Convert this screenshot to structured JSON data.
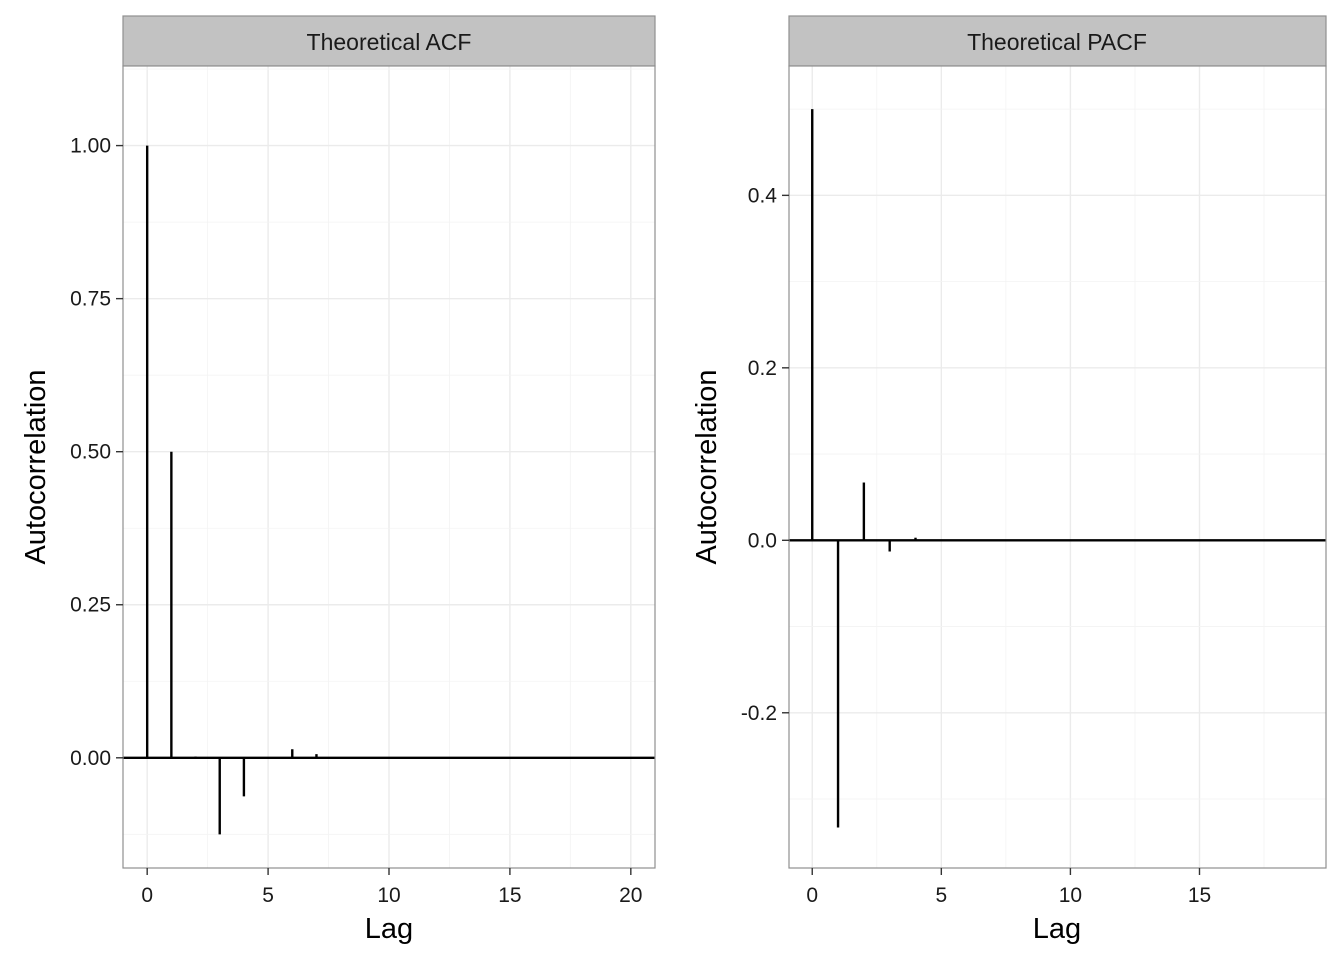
{
  "chart_data": [
    {
      "type": "bar",
      "title": "Theoretical ACF",
      "xlabel": "Lag",
      "ylabel": "Autocorrelation",
      "xlim": [
        -1,
        21
      ],
      "ylim": [
        -0.18,
        1.13
      ],
      "xticks": [
        0,
        5,
        10,
        15,
        20
      ],
      "xtick_labels": [
        "0",
        "5",
        "10",
        "15",
        "20"
      ],
      "yticks": [
        0,
        0.25,
        0.5,
        0.75,
        1.0
      ],
      "ytick_labels": [
        "0.00",
        "0.25",
        "0.50",
        "0.75",
        "1.00"
      ],
      "grid": true,
      "x": [
        0,
        1,
        2,
        3,
        4,
        5,
        6,
        7,
        8,
        9,
        10,
        11,
        12,
        13,
        14,
        15,
        16,
        17,
        18,
        19,
        20
      ],
      "values": [
        1.0,
        0.5,
        0.002,
        -0.125,
        -0.063,
        0.0,
        0.014,
        0.006,
        0.0,
        0.0,
        0.0,
        0.0,
        0.0,
        0.0,
        0.0,
        0.0,
        0.0,
        0.0,
        0.0,
        0.0,
        0.0
      ]
    },
    {
      "type": "bar",
      "title": "Theoretical PACF",
      "xlabel": "Lag",
      "ylabel": "Autocorrelation",
      "xlim": [
        -0.9,
        19.9
      ],
      "ylim": [
        -0.38,
        0.55
      ],
      "xticks": [
        0,
        5,
        10,
        15
      ],
      "xtick_labels": [
        "0",
        "5",
        "10",
        "15"
      ],
      "yticks": [
        -0.2,
        0.0,
        0.2,
        0.4
      ],
      "ytick_labels": [
        "-0.2",
        "0.0",
        "0.2",
        "0.4"
      ],
      "grid": true,
      "x": [
        0,
        1,
        2,
        3,
        4,
        5,
        6,
        7,
        8,
        9,
        10,
        11,
        12,
        13,
        14,
        15,
        16,
        17,
        18,
        19
      ],
      "values": [
        0.5,
        -0.333,
        0.067,
        -0.013,
        0.003,
        0.0,
        0.0,
        0.0,
        0.0,
        0.0,
        0.0,
        0.0,
        0.0,
        0.0,
        0.0,
        0.0,
        0.0,
        0.0,
        0.0,
        0.0
      ]
    }
  ]
}
